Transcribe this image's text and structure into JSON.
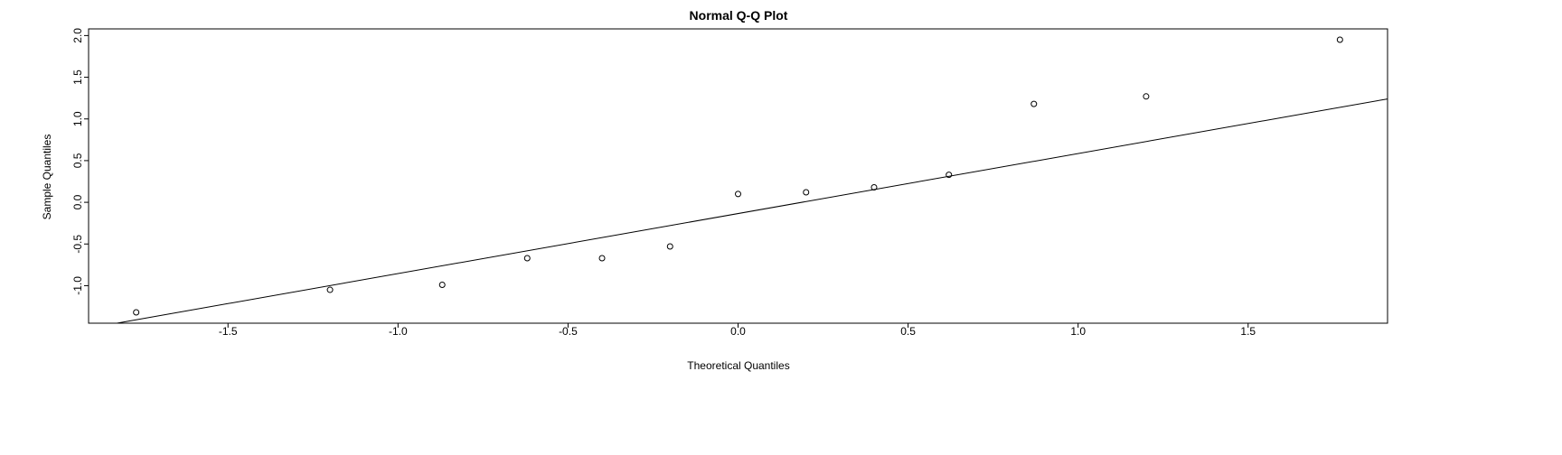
{
  "chart_data": {
    "type": "scatter",
    "title": "Normal Q-Q Plot",
    "xlabel": "Theoretical Quantiles",
    "ylabel": "Sample Quantiles",
    "xlim": [
      -1.91,
      1.91
    ],
    "ylim": [
      -1.45,
      2.08
    ],
    "x_ticks": [
      -1.5,
      -1.0,
      -0.5,
      0.0,
      0.5,
      1.0,
      1.5
    ],
    "x_tick_labels": [
      "-1.5",
      "-1.0",
      "-0.5",
      "0.0",
      "0.5",
      "1.0",
      "1.5"
    ],
    "y_ticks": [
      -1.0,
      -0.5,
      0.0,
      0.5,
      1.0,
      1.5,
      2.0
    ],
    "y_tick_labels": [
      "-1.0",
      "-0.5",
      "0.0",
      "0.5",
      "1.0",
      "1.5",
      "2.0"
    ],
    "grid": false,
    "points": {
      "x": [
        -1.77,
        -1.2,
        -0.87,
        -0.62,
        -0.4,
        -0.2,
        0.0,
        0.2,
        0.4,
        0.62,
        0.87,
        1.2,
        1.77
      ],
      "y": [
        -1.32,
        -1.05,
        -0.99,
        -0.67,
        -0.67,
        -0.53,
        0.1,
        0.12,
        0.18,
        0.33,
        1.18,
        1.27,
        1.95
      ]
    },
    "reference_line": {
      "x": [
        -1.91,
        1.91
      ],
      "y": [
        -1.51,
        1.24
      ]
    },
    "colors": {
      "points": "#000000",
      "line": "#000000",
      "frame": "#000000"
    }
  }
}
